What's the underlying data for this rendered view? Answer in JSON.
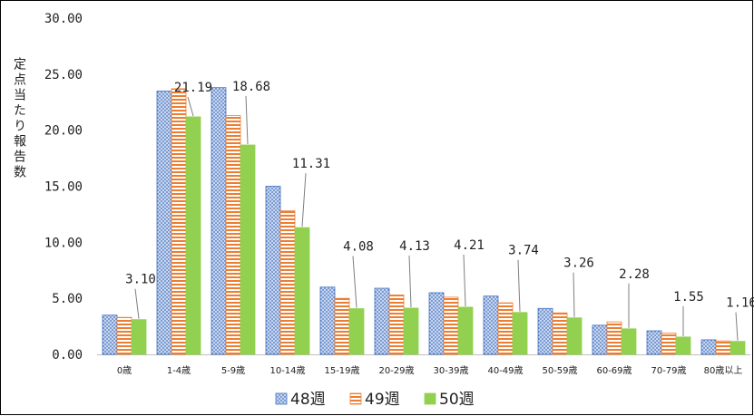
{
  "chart_data": {
    "type": "bar",
    "ylabel": "定点当たり報告数",
    "ylim": [
      0,
      30
    ],
    "yticks": [
      "0.00",
      "5.00",
      "10.00",
      "15.00",
      "20.00",
      "25.00",
      "30.00"
    ],
    "categories": [
      "0歳",
      "1-4歳",
      "5-9歳",
      "10-14歳",
      "15-19歳",
      "20-29歳",
      "30-39歳",
      "40-49歳",
      "50-59歳",
      "60-69歳",
      "70-79歳",
      "80歳以上"
    ],
    "series": [
      {
        "name": "48週",
        "color": "#4472c4",
        "pattern": "dots",
        "values": [
          3.5,
          23.5,
          23.8,
          15.0,
          6.0,
          5.9,
          5.5,
          5.2,
          4.1,
          2.6,
          2.1,
          1.3
        ]
      },
      {
        "name": "49週",
        "color": "#ed7d31",
        "pattern": "horizontal-stripes",
        "values": [
          3.3,
          23.7,
          21.3,
          12.8,
          5.0,
          5.3,
          5.1,
          4.6,
          3.7,
          2.9,
          1.9,
          1.2
        ]
      },
      {
        "name": "50週",
        "color": "#92d050",
        "pattern": "solid",
        "values": [
          3.1,
          21.19,
          18.68,
          11.31,
          4.08,
          4.13,
          4.21,
          3.74,
          3.26,
          2.28,
          1.55,
          1.16
        ]
      }
    ],
    "data_labels": [
      "3.10",
      "21.19",
      "18.68",
      "11.31",
      "4.08",
      "4.13",
      "4.21",
      "3.74",
      "3.26",
      "2.28",
      "1.55",
      "1.16"
    ],
    "legend_position": "bottom"
  }
}
